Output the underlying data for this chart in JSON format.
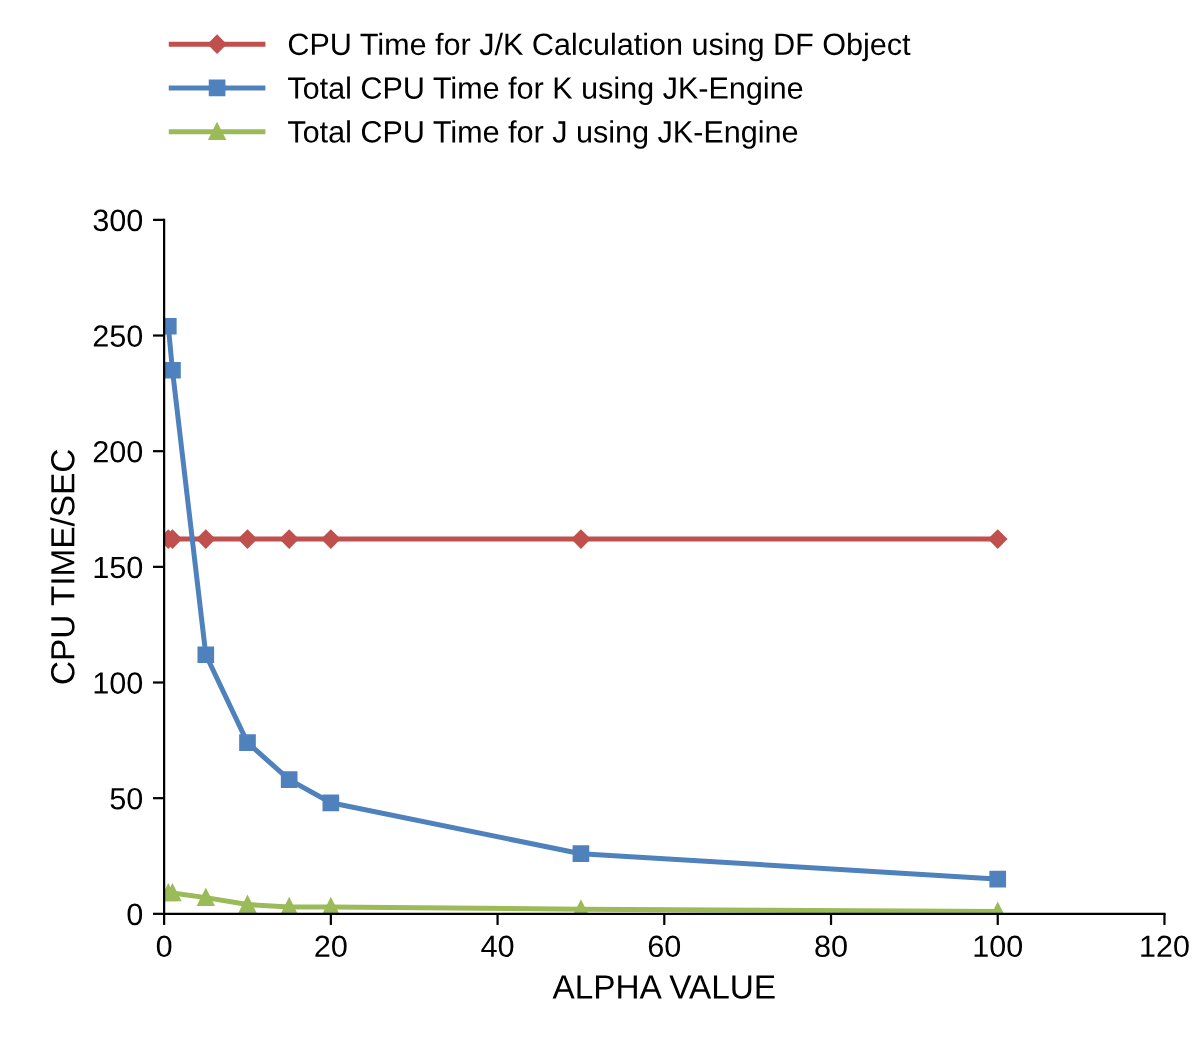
{
  "chart_data": {
    "type": "line",
    "xlabel": "ALPHA VALUE",
    "ylabel": "CPU TIME/SEC",
    "x": [
      0.5,
      1,
      5,
      10,
      15,
      20,
      50,
      100
    ],
    "series": [
      {
        "name": "CPU Time for J/K Calculation using DF Object",
        "color": "#c0504d",
        "marker": "diamond",
        "values": [
          162,
          162,
          162,
          162,
          162,
          162,
          162,
          162
        ]
      },
      {
        "name": "Total CPU Time for K using JK-Engine",
        "color": "#4f81bd",
        "marker": "square",
        "values": [
          254,
          235,
          112,
          74,
          58,
          48,
          26,
          15
        ]
      },
      {
        "name": "Total CPU Time for J using JK-Engine",
        "color": "#9bbb59",
        "marker": "triangle",
        "values": [
          9,
          9,
          7,
          4,
          3,
          3,
          2,
          1
        ]
      }
    ],
    "xlim": [
      0,
      120
    ],
    "xticks": [
      0,
      20,
      40,
      60,
      80,
      100,
      120
    ],
    "ylim": [
      0,
      300
    ],
    "yticks": [
      0,
      50,
      100,
      150,
      200,
      250,
      300
    ],
    "grid": false,
    "legend": "top",
    "line_style": "solid"
  }
}
